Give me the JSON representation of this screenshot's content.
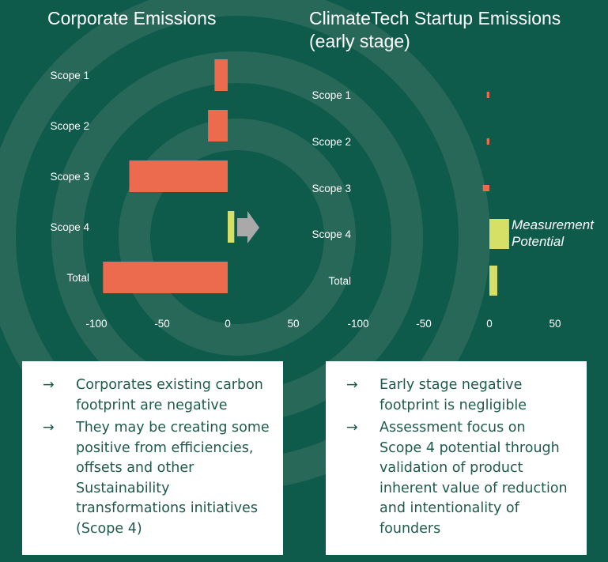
{
  "colors": {
    "background": "#0e5a4b",
    "negative_bar": "#ec6a4e",
    "positive_bar": "#d6df66",
    "arrow": "#a9a9a9",
    "text_dark": "#1f5a4d"
  },
  "chart_data": [
    {
      "type": "bar",
      "orientation": "horizontal",
      "title": "Corporate Emissions",
      "categories": [
        "Scope 1",
        "Scope 2",
        "Scope 3",
        "Scope 4",
        "Total"
      ],
      "values": [
        -10,
        -15,
        -75,
        5,
        -95
      ],
      "xlim": [
        -100,
        50
      ],
      "xticks": [
        "-100",
        "-50",
        "0",
        "50"
      ],
      "xlabel": "",
      "ylabel": "",
      "grid": false
    },
    {
      "type": "bar",
      "orientation": "horizontal",
      "title": "ClimateTech Startup Emissions\n(early stage)",
      "categories": [
        "Scope 1",
        "Scope 2",
        "Scope 3",
        "Scope 4",
        "Total"
      ],
      "values": [
        -2,
        -2,
        -5,
        15,
        6
      ],
      "xlim": [
        -100,
        50
      ],
      "xticks": [
        "-100",
        "-50",
        "0",
        "50"
      ],
      "xlabel": "",
      "ylabel": "",
      "grid": false,
      "annotation": "Measurement\nPotential"
    }
  ],
  "panels": {
    "left": {
      "arrow_icon": "→",
      "bullets": [
        "Corporates existing carbon\nfootprint are negative",
        "They may be creating some\npositive from efficiencies,\noffsets and other\nSustainability\ntransformations initiatives\n(Scope 4)"
      ]
    },
    "right": {
      "arrow_icon": "→",
      "bullets": [
        "Early stage negative\nfootprint is negligible",
        "Assessment focus on\nScope 4 potential through\nvalidation of product\ninherent value of reduction\nand intentionality of\nfounders"
      ]
    }
  }
}
